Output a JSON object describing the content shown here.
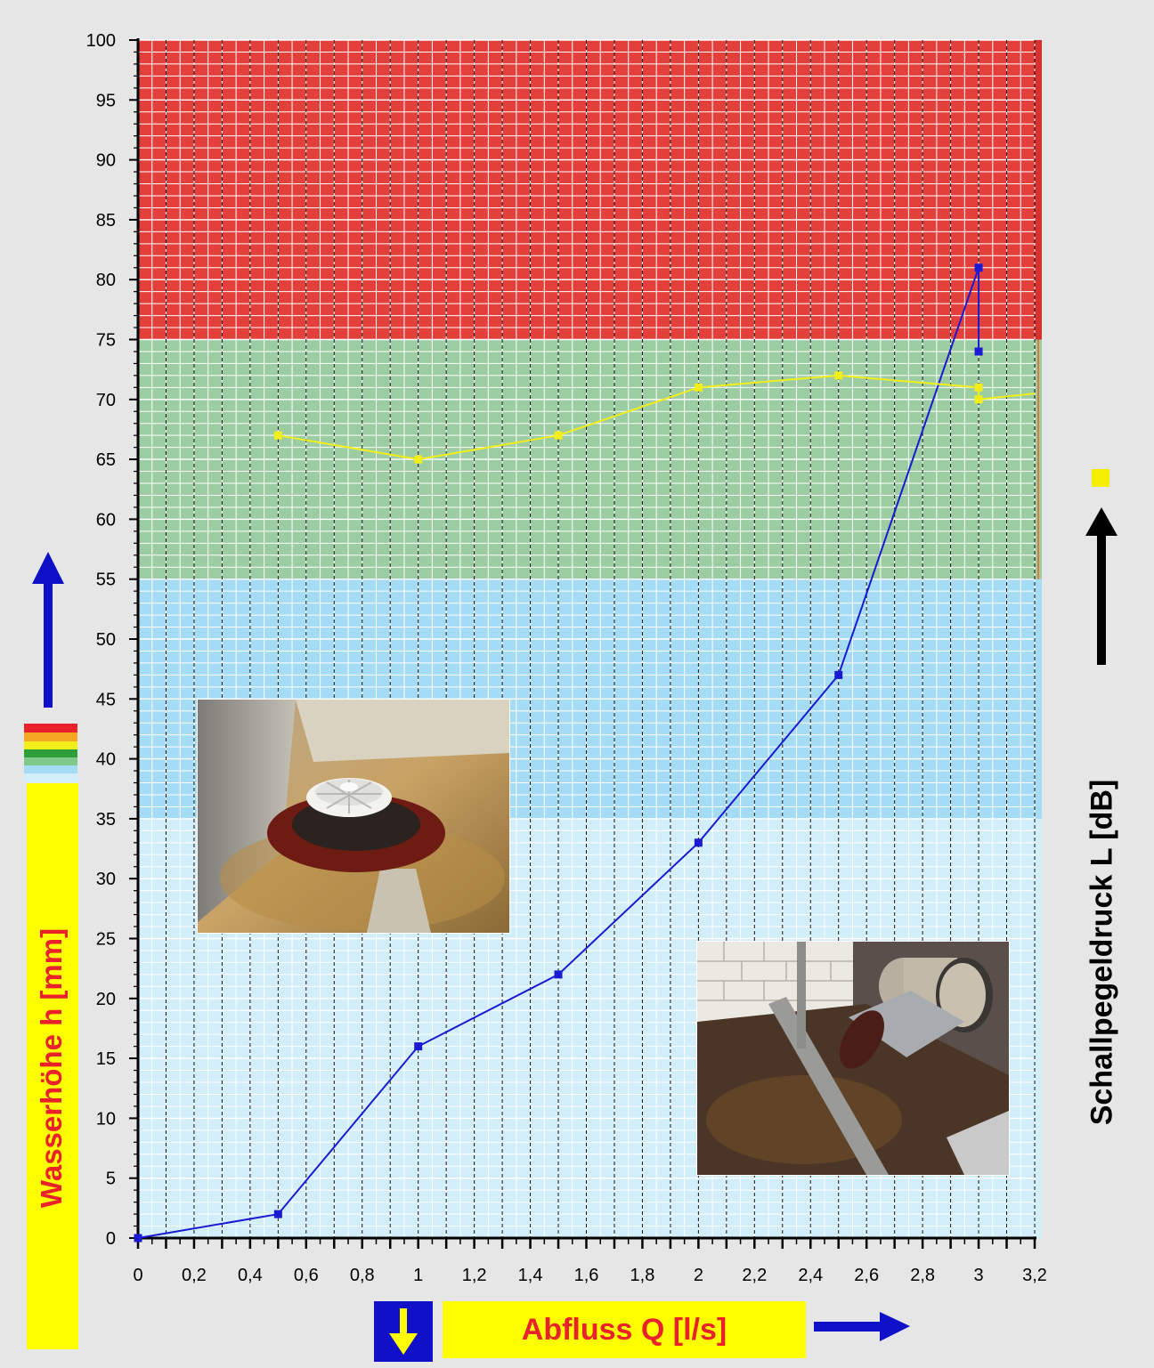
{
  "chart_data": {
    "type": "line",
    "xlabel": "Abfluss Q [l/s]",
    "ylabel": "Wasserhöhe h [mm]",
    "y2label": "Schallpegeldruck L [dB]",
    "xlim": [
      0,
      3.2
    ],
    "ylim": [
      0,
      100
    ],
    "x_ticks": [
      "0",
      "0,2",
      "0,4",
      "0,6",
      "0,8",
      "1",
      "1,2",
      "1,4",
      "1,6",
      "1,8",
      "2",
      "2,2",
      "2,4",
      "2,6",
      "2,8",
      "3",
      "3,2"
    ],
    "y_ticks": [
      "0",
      "5",
      "10",
      "15",
      "20",
      "25",
      "30",
      "35",
      "40",
      "45",
      "50",
      "55",
      "60",
      "65",
      "70",
      "75",
      "80",
      "85",
      "90",
      "95",
      "100"
    ],
    "grid": true,
    "bands": [
      {
        "from": 0,
        "to": 35,
        "color": "#d2eefa"
      },
      {
        "from": 35,
        "to": 55,
        "color": "#a5dcf5"
      },
      {
        "from": 55,
        "to": 75,
        "color": "#9ccca1"
      },
      {
        "from": 75,
        "to": 100,
        "color": "#e3403b"
      }
    ],
    "series": [
      {
        "color": "#1a1ad2",
        "x": [
          0,
          0.5,
          1,
          1.5,
          2,
          2.5,
          3,
          3
        ],
        "y": [
          0,
          2,
          16,
          22,
          33,
          47,
          81,
          74
        ]
      },
      {
        "color": "#f2ee1c",
        "x": [
          0.5,
          1,
          1.5,
          2,
          2.5,
          3,
          3,
          3.2
        ],
        "y": [
          67,
          65,
          67,
          71,
          72,
          71,
          70,
          70.5
        ]
      }
    ]
  },
  "colors": {
    "background": "#e6e6e6",
    "label_box": "#ffff00",
    "label_text": "#e8212b",
    "arrow_blue": "#1010c8",
    "arrow_black": "#000000",
    "legend_marker": "#f2ee1c"
  },
  "legend_strip_colors": [
    "#e8212b",
    "#f5a623",
    "#f2ee1c",
    "#2e9e3a",
    "#7fc98a",
    "#a5dcf5",
    "#d2eefa"
  ],
  "icons": [
    "up-arrow-icon",
    "down-arrow-icon",
    "right-arrow-icon",
    "black-up-arrow-icon",
    "legend-square-icon"
  ],
  "photos": [
    "roof-drain-photo",
    "pipe-outlet-photo"
  ]
}
